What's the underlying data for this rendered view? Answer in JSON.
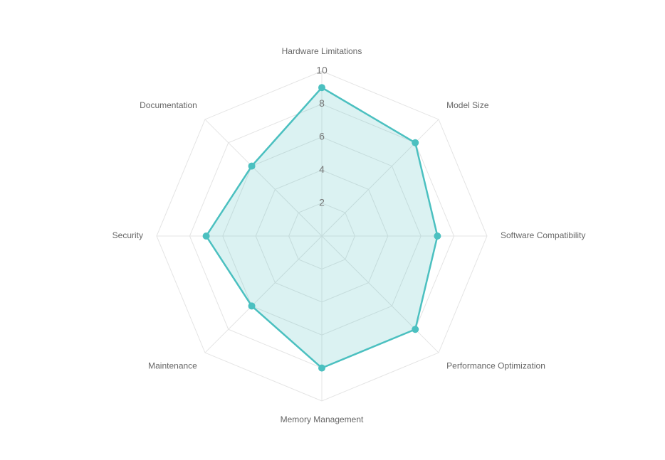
{
  "chart_data": {
    "type": "radar",
    "categories": [
      "Hardware Limitations",
      "Model Size",
      "Software Compatibility",
      "Performance Optimization",
      "Memory Management",
      "Maintenance",
      "Security",
      "Documentation"
    ],
    "series": [
      {
        "color": "#4bc0c0",
        "values": [
          9,
          8,
          7,
          8,
          8,
          6,
          7,
          6
        ]
      }
    ],
    "rlim": [
      0,
      10
    ],
    "rticks": [
      2,
      4,
      6,
      8,
      10
    ],
    "grid": true
  }
}
